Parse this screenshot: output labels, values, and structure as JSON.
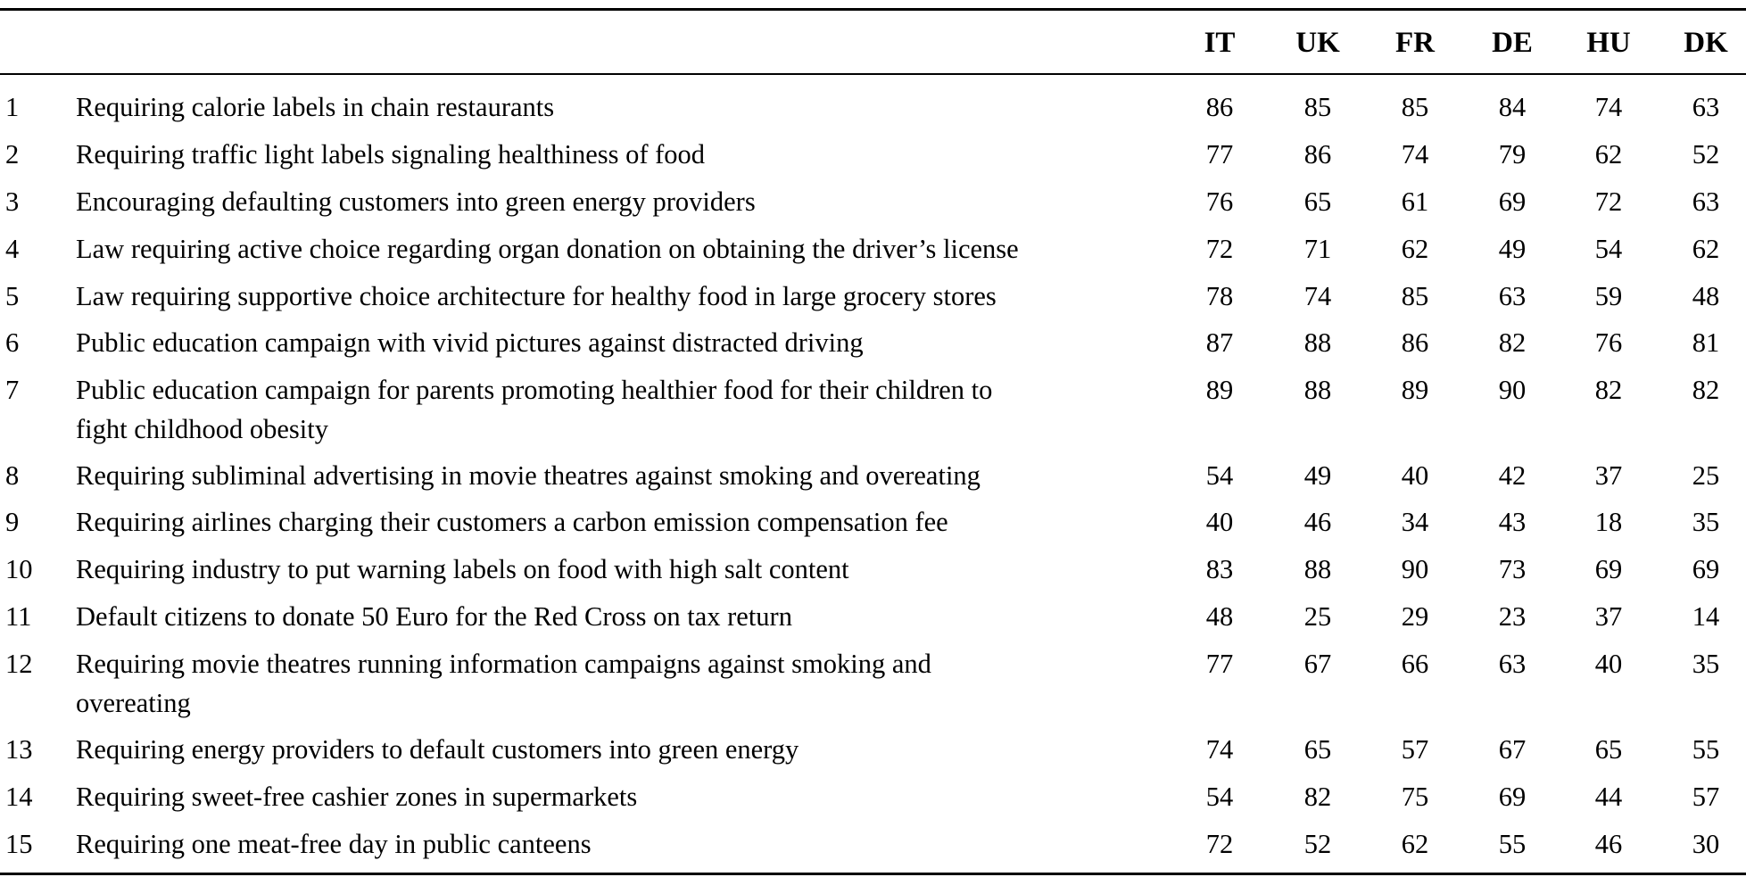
{
  "table": {
    "columns": [
      "IT",
      "UK",
      "FR",
      "DE",
      "HU",
      "DK"
    ],
    "rows": [
      {
        "num": "1",
        "text": [
          "Requiring calorie labels in chain restaurants"
        ],
        "values": [
          "86",
          "85",
          "85",
          "84",
          "74",
          "63"
        ]
      },
      {
        "num": "2",
        "text": [
          "Requiring traffic light labels signaling healthiness of food"
        ],
        "values": [
          "77",
          "86",
          "74",
          "79",
          "62",
          "52"
        ]
      },
      {
        "num": "3",
        "text": [
          "Encouraging defaulting customers into green energy providers"
        ],
        "values": [
          "76",
          "65",
          "61",
          "69",
          "72",
          "63"
        ]
      },
      {
        "num": "4",
        "text": [
          "Law requiring active choice regarding organ donation on obtaining the driver’s license"
        ],
        "values": [
          "72",
          "71",
          "62",
          "49",
          "54",
          "62"
        ]
      },
      {
        "num": "5",
        "text": [
          "Law requiring supportive choice architecture for healthy food in large grocery stores"
        ],
        "values": [
          "78",
          "74",
          "85",
          "63",
          "59",
          "48"
        ]
      },
      {
        "num": "6",
        "text": [
          "Public education campaign with vivid pictures against distracted driving"
        ],
        "values": [
          "87",
          "88",
          "86",
          "82",
          "76",
          "81"
        ]
      },
      {
        "num": "7",
        "text": [
          "Public education campaign for parents promoting healthier food for their children to",
          "fight childhood obesity"
        ],
        "values": [
          "89",
          "88",
          "89",
          "90",
          "82",
          "82"
        ]
      },
      {
        "num": "8",
        "text": [
          "Requiring subliminal advertising in movie theatres against smoking and overeating"
        ],
        "values": [
          "54",
          "49",
          "40",
          "42",
          "37",
          "25"
        ]
      },
      {
        "num": "9",
        "text": [
          "Requiring airlines charging their customers a carbon emission compensation fee"
        ],
        "values": [
          "40",
          "46",
          "34",
          "43",
          "18",
          "35"
        ]
      },
      {
        "num": "10",
        "text": [
          "Requiring industry to put warning labels on food with high salt content"
        ],
        "values": [
          "83",
          "88",
          "90",
          "73",
          "69",
          "69"
        ]
      },
      {
        "num": "11",
        "text": [
          "Default citizens to donate 50 Euro for the Red Cross on tax return"
        ],
        "values": [
          "48",
          "25",
          "29",
          "23",
          "37",
          "14"
        ]
      },
      {
        "num": "12",
        "text": [
          "Requiring movie theatres running information campaigns against smoking and",
          "overeating"
        ],
        "values": [
          "77",
          "67",
          "66",
          "63",
          "40",
          "35"
        ]
      },
      {
        "num": "13",
        "text": [
          "Requiring energy providers to default customers into green energy"
        ],
        "values": [
          "74",
          "65",
          "57",
          "67",
          "65",
          "55"
        ]
      },
      {
        "num": "14",
        "text": [
          "Requiring sweet-free cashier zones in supermarkets"
        ],
        "values": [
          "54",
          "82",
          "75",
          "69",
          "44",
          "57"
        ]
      },
      {
        "num": "15",
        "text": [
          "Requiring one meat-free day in public canteens"
        ],
        "values": [
          "72",
          "52",
          "62",
          "55",
          "46",
          "30"
        ]
      }
    ]
  }
}
